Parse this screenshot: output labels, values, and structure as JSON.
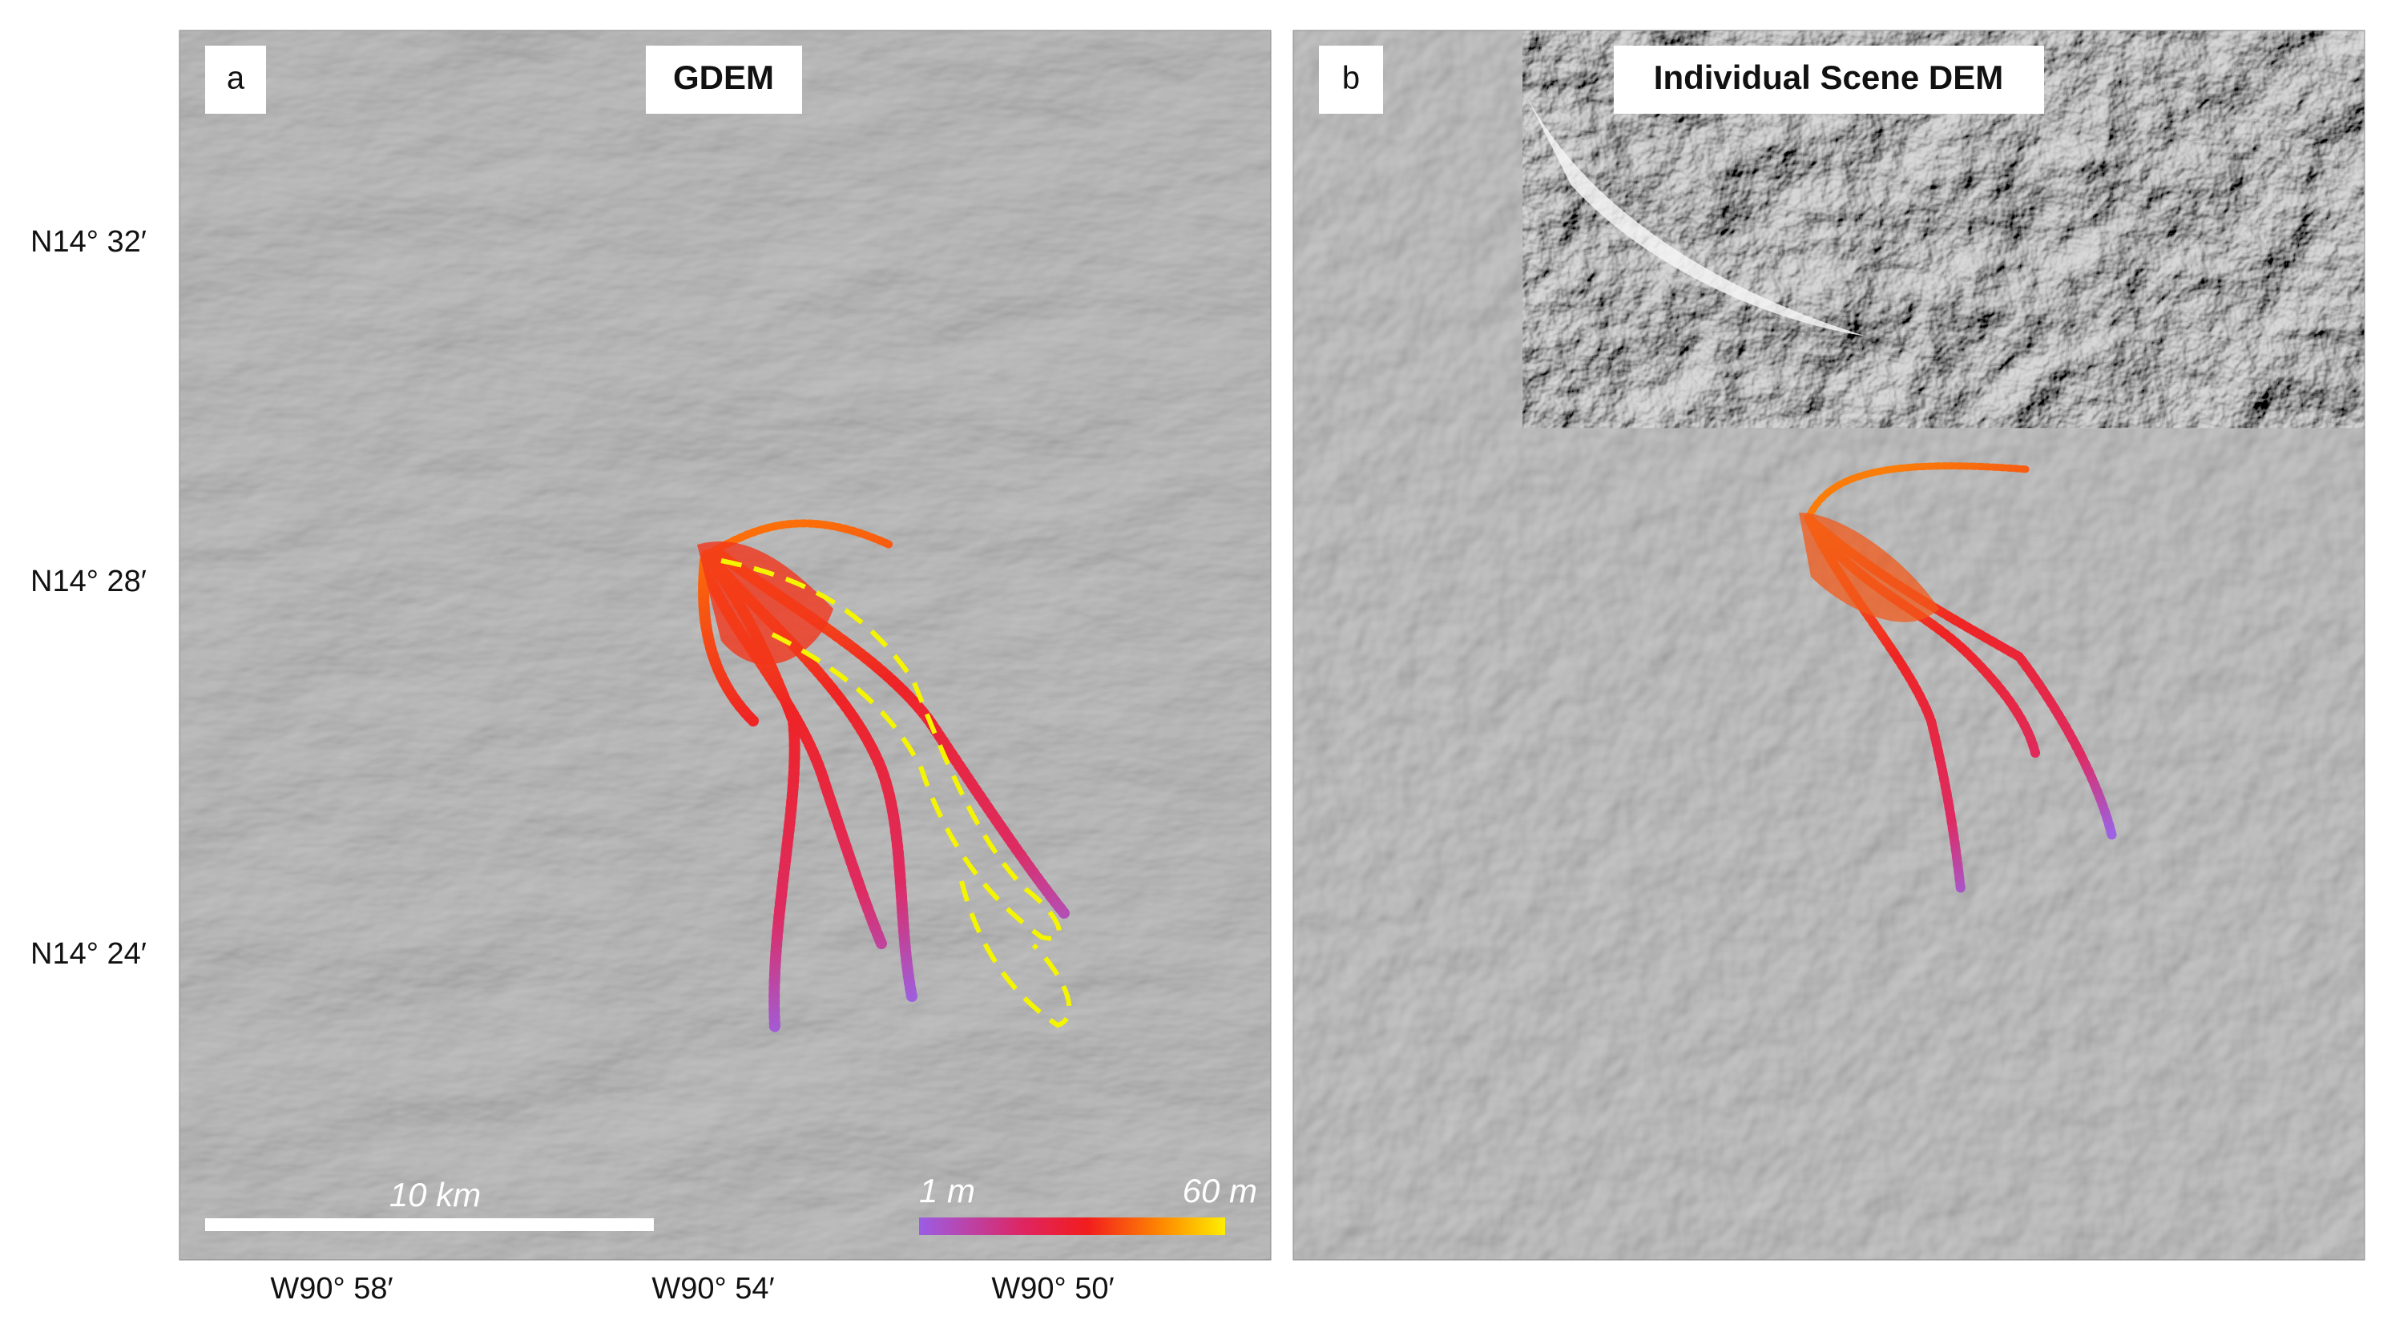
{
  "panels": [
    {
      "label": "a",
      "title": "GDEM"
    },
    {
      "label": "b",
      "title": "Individual Scene DEM"
    }
  ],
  "latitude_labels": [
    "N14° 32′",
    "N14° 28′",
    "N14° 24′"
  ],
  "longitude_labels": [
    "W90° 58′",
    "W90° 54′",
    "W90° 50′"
  ],
  "scale_bar": {
    "label": "10 km"
  },
  "colorbar": {
    "min_label": "1 m",
    "max_label": "60 m"
  }
}
